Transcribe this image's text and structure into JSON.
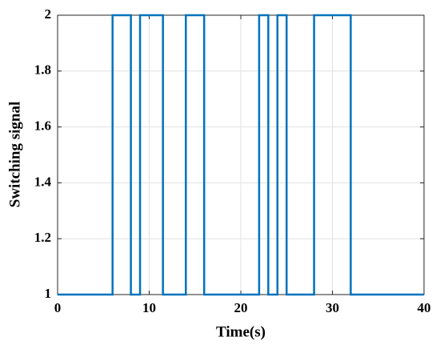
{
  "chart_data": {
    "type": "line",
    "xlabel": "Time(s)",
    "ylabel": "Switching signal",
    "x": [
      0,
      6,
      6,
      8,
      8,
      9,
      9,
      11.5,
      11.5,
      14,
      14,
      16,
      16,
      22,
      22,
      23,
      23,
      24,
      24,
      25,
      25,
      28,
      28,
      32,
      32,
      40
    ],
    "series": [
      {
        "color": "#0072bd",
        "values": [
          1,
          1,
          2,
          2,
          1,
          1,
          2,
          2,
          1,
          1,
          2,
          2,
          1,
          1,
          2,
          2,
          1,
          1,
          2,
          2,
          1,
          1,
          2,
          2,
          1,
          1
        ]
      }
    ],
    "xlim": [
      0,
      40
    ],
    "xticks": [
      0,
      10,
      20,
      30,
      40
    ],
    "ylim": [
      1,
      2
    ],
    "yticks": [
      1,
      1.2,
      1.4,
      1.6,
      1.8,
      2
    ],
    "grid": true
  }
}
